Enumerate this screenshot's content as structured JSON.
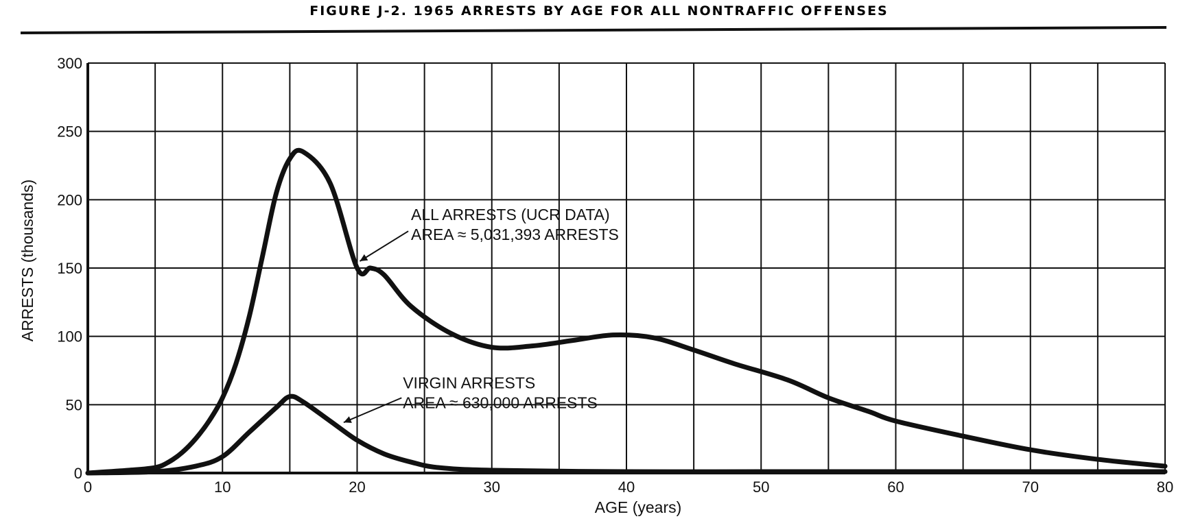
{
  "chart_data": {
    "type": "line",
    "title": "FIGURE J-2.   1965 ARRESTS BY AGE FOR ALL NONTRAFFIC OFFENSES",
    "xlabel": "AGE (years)",
    "ylabel": "ARRESTS (thousands)",
    "xlim": [
      0,
      80
    ],
    "ylim": [
      0,
      300
    ],
    "grid": true,
    "x_ticks": [
      0,
      10,
      20,
      30,
      40,
      50,
      60,
      70,
      80
    ],
    "y_ticks": [
      0,
      50,
      100,
      150,
      200,
      250,
      300
    ],
    "series": [
      {
        "name": "ALL ARRESTS (UCR DATA)",
        "x": [
          0,
          3,
          5,
          6,
          7,
          8,
          9,
          10,
          11,
          12,
          13,
          14,
          15,
          16,
          18,
          20,
          21,
          22,
          24,
          27,
          30,
          33,
          36,
          39,
          42,
          45,
          48,
          52,
          55,
          58,
          60,
          65,
          70,
          75,
          80
        ],
        "y": [
          0,
          2,
          4,
          8,
          15,
          25,
          38,
          55,
          80,
          115,
          160,
          205,
          230,
          235,
          212,
          150,
          150,
          145,
          122,
          102,
          92,
          93,
          97,
          101,
          99,
          90,
          80,
          68,
          55,
          45,
          38,
          27,
          17,
          10,
          5
        ]
      },
      {
        "name": "VIRGIN ARRESTS",
        "x": [
          0,
          5,
          8,
          10,
          12,
          14,
          15,
          16,
          18,
          20,
          22,
          24,
          26,
          30,
          40,
          50,
          60,
          70,
          80
        ],
        "y": [
          0,
          1,
          5,
          12,
          30,
          48,
          56,
          52,
          38,
          24,
          14,
          8,
          4,
          2,
          1,
          1,
          1,
          1,
          1
        ]
      }
    ],
    "annotations": [
      {
        "lines": [
          "ALL ARRESTS (UCR DATA)",
          "AREA ≈  5,031,393 ARRESTS"
        ]
      },
      {
        "lines": [
          "VIRGIN ARRESTS",
          "AREA ≈ 630,000 ARRESTS"
        ]
      }
    ]
  }
}
